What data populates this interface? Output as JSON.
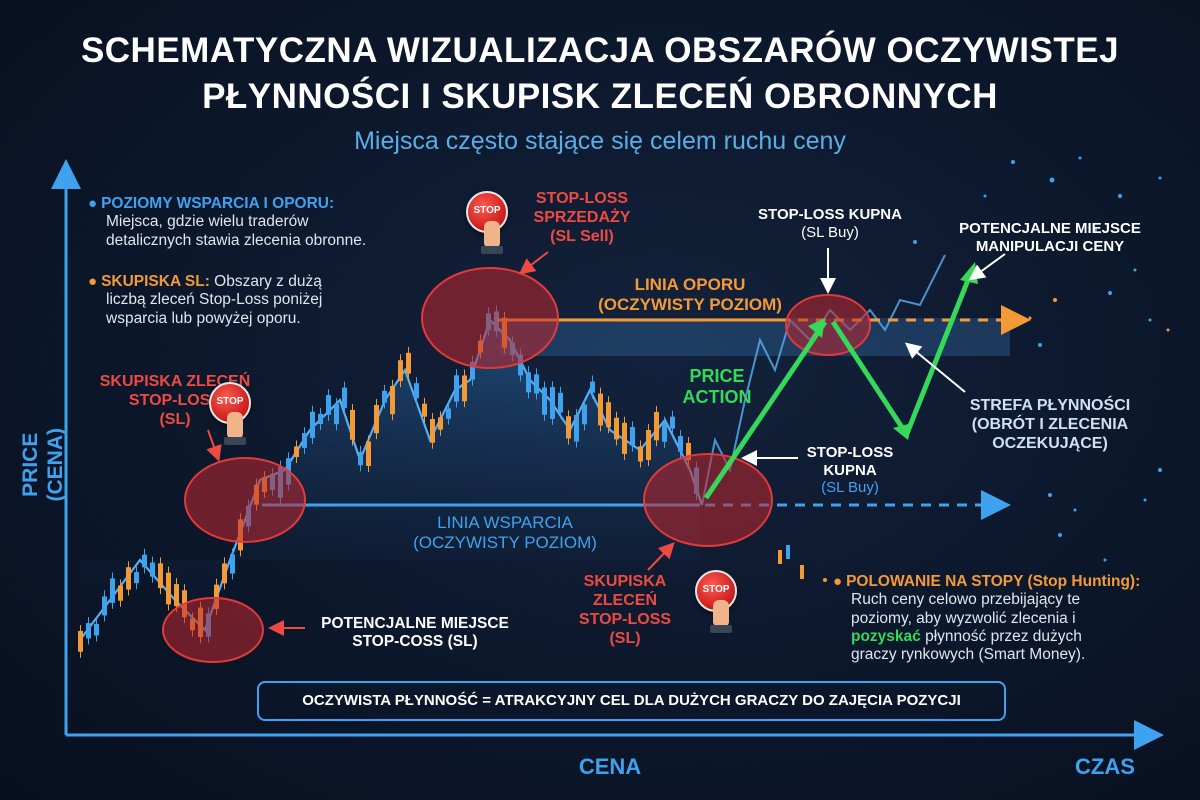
{
  "title_line1": "SCHEMATYCZNA WIZUALIZACJA OBSZARÓW OCZYWISTEJ",
  "title_line2": "PŁYNNOŚCI I SKUPISK ZLECEŃ OBRONNYCH",
  "subtitle": "Miejsca często stające się celem ruchu ceny",
  "axes": {
    "y_label": "PRICE (CENA)",
    "x_label_center": "CENA",
    "x_label_right": "CZAS"
  },
  "legend_top": {
    "item1_head": "POZIOMY WSPARCIA I OPORU:",
    "item1_line1": "Miejsca, gdzie wielu traderów",
    "item1_line2": "detalicznych stawia zlecenia obronne.",
    "item2_head": "SKUPISKA SL:",
    "item2_line1": " Obszary z dużą",
    "item2_line2": "liczbą zleceń Stop-Loss poniżej",
    "item2_line3": "wsparcia lub powyżej oporu."
  },
  "labels": {
    "sl_cluster_left": [
      "SKUPISKA ZLECEŃ",
      "STOP-LOSS",
      "(SL)"
    ],
    "sl_sell": [
      "STOP-LOSS",
      "SPRZEDAŻY",
      "(SL Sell)"
    ],
    "sl_buy_top": [
      "STOP-LOSS KUPNA",
      "(SL Buy)"
    ],
    "manipulation": [
      "POTENCJALNE MIEJSCE",
      "MANIPULACJI CENY"
    ],
    "resistance_line": [
      "LINIA OPORU",
      "(OCZYWISTY POZIOM)"
    ],
    "price_action": [
      "PRICE",
      "ACTION"
    ],
    "liquidity_zone": [
      "STREFA PŁYNNOŚCI",
      "(OBRÓT I ZLECENIA",
      "OCZEKUJĄCE)"
    ],
    "sl_buy_mid": [
      "STOP-LOSS",
      "KUPNA",
      "(SL Buy)"
    ],
    "support_line": [
      "LINIA WSPARCIA",
      "(OCZYWISTY POZIOM)"
    ],
    "potential_sl": [
      "POTENCJALNE MIEJSCE",
      "STOP-COSS (SL)"
    ],
    "sl_cluster_bottom": [
      "SKUPISKA",
      "ZLECEŃ",
      "STOP-LOSS",
      "(SL)"
    ]
  },
  "stop_button_text": "STOP",
  "stop_hunting": {
    "head": "POLOWANIE NA STOPY (Stop Hunting):",
    "line1": "Ruch ceny celowo przebijający te",
    "line2": "poziomy, aby wyzwolić zlecenia i",
    "line3_bold": "pozyskać",
    "line3_rest": " płynność przez dużych",
    "line4": "graczy rynkowych (Smart Money)."
  },
  "banner": "OCZYWISTA PŁYNNOŚĆ = ATRAKCYJNY CEL DLA DUŻYCH GRACZY DO ZAJĘCIA POZYCJI",
  "colors": {
    "background": "#0c172b",
    "accent_blue": "#3fa2ee",
    "accent_orange": "#f39a36",
    "accent_red": "#ee4a42",
    "accent_green": "#36d85a",
    "zone_red": "#c0272d"
  }
}
